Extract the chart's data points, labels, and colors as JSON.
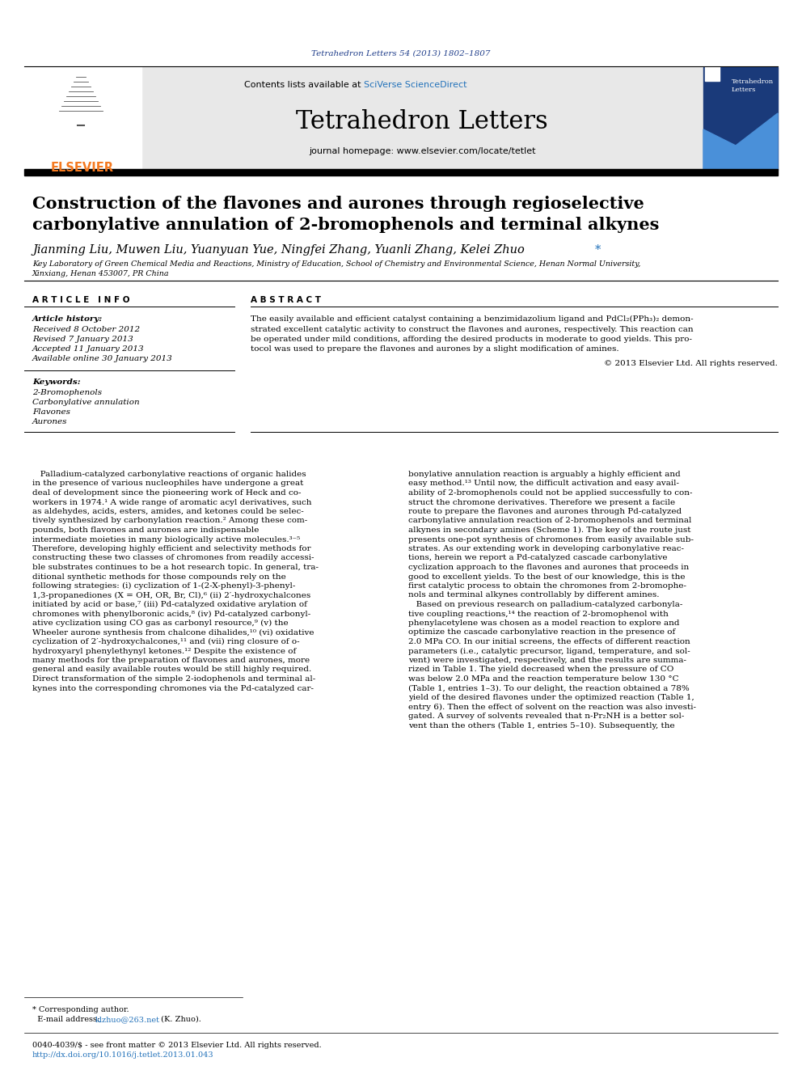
{
  "journal_citation": "Tetrahedron Letters 54 (2013) 1802–1807",
  "journal_name": "Tetrahedron Letters",
  "journal_homepage": "journal homepage: www.elsevier.com/locate/tetlet",
  "title_line1": "Construction of the flavones and aurones through regioselective",
  "title_line2": "carbonylative annulation of 2-bromophenols and terminal alkynes",
  "authors": "Jianming Liu, Muwen Liu, Yuanyuan Yue, Ningfei Zhang, Yuanli Zhang, Kelei Zhuo",
  "affil1": "Key Laboratory of Green Chemical Media and Reactions, Ministry of Education, School of Chemistry and Environmental Science, Henan Normal University,",
  "affil2": "Xinxiang, Henan 453007, PR China",
  "received": "Received 8 October 2012",
  "revised": "Revised 7 January 2013",
  "accepted": "Accepted 11 January 2013",
  "available": "Available online 30 January 2013",
  "keywords": [
    "2-Bromophenols",
    "Carbonylative annulation",
    "Flavones",
    "Aurones"
  ],
  "abstract_text1": "The easily available and efficient catalyst containing a benzimidazolium ligand and PdCl₂(PPh₃)₂ demon-",
  "abstract_text2": "strated excellent catalytic activity to construct the flavones and aurones, respectively. This reaction can",
  "abstract_text3": "be operated under mild conditions, affording the desired products in moderate to good yields. This pro-",
  "abstract_text4": "tocol was used to prepare the flavones and aurones by a slight modification of amines.",
  "copyright": "© 2013 Elsevier Ltd. All rights reserved.",
  "body1_lines": [
    "   Palladium-catalyzed carbonylative reactions of organic halides",
    "in the presence of various nucleophiles have undergone a great",
    "deal of development since the pioneering work of Heck and co-",
    "workers in 1974.¹ A wide range of aromatic acyl derivatives, such",
    "as aldehydes, acids, esters, amides, and ketones could be selec-",
    "tively synthesized by carbonylation reaction.² Among these com-",
    "pounds, both flavones and aurones are indispensable",
    "intermediate moieties in many biologically active molecules.³⁻⁵",
    "Therefore, developing highly efficient and selectivity methods for",
    "constructing these two classes of chromones from readily accessi-",
    "ble substrates continues to be a hot research topic. In general, tra-",
    "ditional synthetic methods for those compounds rely on the",
    "following strategies: (i) cyclization of 1-(2-X-phenyl)-3-phenyl-",
    "1,3-propanediones (X = OH, OR, Br, Cl),⁶ (ii) 2′-hydroxychalcones",
    "initiated by acid or base,⁷ (iii) Pd-catalyzed oxidative arylation of",
    "chromones with phenylboronic acids,⁸ (iv) Pd-catalyzed carbonyl-",
    "ative cyclization using CO gas as carbonyl resource,⁹ (v) the",
    "Wheeler aurone synthesis from chalcone dihalides,¹⁰ (vi) oxidative",
    "cyclization of 2′-hydroxychalcones,¹¹ and (vii) ring closure of o-",
    "hydroxyaryl phenylethynyl ketones.¹² Despite the existence of",
    "many methods for the preparation of flavones and aurones, more",
    "general and easily available routes would be still highly required.",
    "Direct transformation of the simple 2-iodophenols and terminal al-",
    "kynes into the corresponding chromones via the Pd-catalyzed car-"
  ],
  "body2_lines": [
    "bonylative annulation reaction is arguably a highly efficient and",
    "easy method.¹³ Until now, the difficult activation and easy avail-",
    "ability of 2-bromophenols could not be applied successfully to con-",
    "struct the chromone derivatives. Therefore we present a facile",
    "route to prepare the flavones and aurones through Pd-catalyzed",
    "carbonylative annulation reaction of 2-bromophenols and terminal",
    "alkynes in secondary amines (Scheme 1). The key of the route just",
    "presents one-pot synthesis of chromones from easily available sub-",
    "strates. As our extending work in developing carbonylative reac-",
    "tions, herein we report a Pd-catalyzed cascade carbonylative",
    "cyclization approach to the flavones and aurones that proceeds in",
    "good to excellent yields. To the best of our knowledge, this is the",
    "first catalytic process to obtain the chromones from 2-bromophe-",
    "nols and terminal alkynes controllably by different amines.",
    "   Based on previous research on palladium-catalyzed carbonyla-",
    "tive coupling reactions,¹⁴ the reaction of 2-bromophenol with",
    "phenylacetylene was chosen as a model reaction to explore and",
    "optimize the cascade carbonylative reaction in the presence of",
    "2.0 MPa CO. In our initial screens, the effects of different reaction",
    "parameters (i.e., catalytic precursor, ligand, temperature, and sol-",
    "vent) were investigated, respectively, and the results are summa-",
    "rized in Table 1. The yield decreased when the pressure of CO",
    "was below 2.0 MPa and the reaction temperature below 130 °C",
    "(Table 1, entries 1–3). To our delight, the reaction obtained a 78%",
    "yield of the desired flavones under the optimized reaction (Table 1,",
    "entry 6). Then the effect of solvent on the reaction was also investi-",
    "gated. A survey of solvents revealed that n-Pr₂NH is a better sol-",
    "vent than the others (Table 1, entries 5–10). Subsequently, the"
  ],
  "footnote1": "* Corresponding author.",
  "footnote2": "  E-mail address: ",
  "footnote_email": "klzhuo@263.net",
  "footnote3": " (K. Zhuo).",
  "footer1": "0040-4039/$ - see front matter © 2013 Elsevier Ltd. All rights reserved.",
  "footer2": "http://dx.doi.org/10.1016/j.tetlet.2013.01.043",
  "bg_color": "#ffffff",
  "gray_header_bg": "#e8e8e8",
  "elsevier_orange": "#f47920",
  "link_blue": "#1f3d8a",
  "sciverse_blue": "#2372ba",
  "cover_blue_dark": "#1a3a7a",
  "cover_blue_light": "#4a90d9"
}
